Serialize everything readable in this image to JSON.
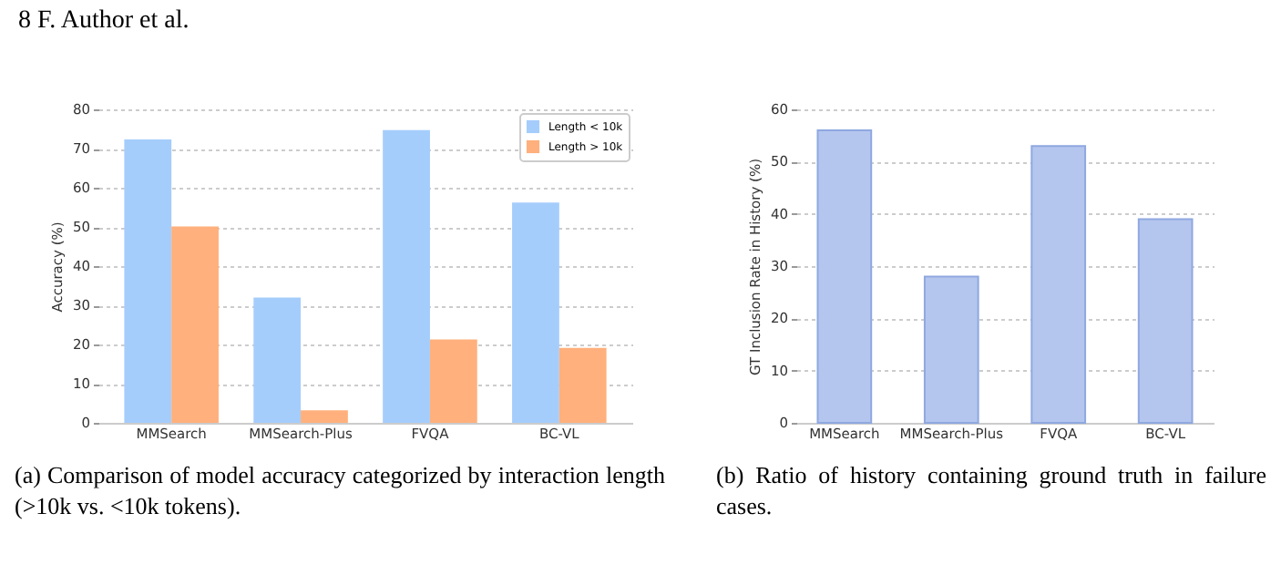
{
  "chart_data": [
    {
      "type": "bar",
      "ylabel": "Accuracy (%)",
      "categories": [
        "MMSearch",
        "MMSearch-Plus",
        "FVQA",
        "BC-VL"
      ],
      "series": [
        {
          "name": "Length < 10k",
          "color": "#a5cdfc",
          "values": [
            72.3,
            32,
            74.7,
            56.2
          ]
        },
        {
          "name": "Length > 10k",
          "color": "#ffb07c",
          "values": [
            50.1,
            3.2,
            21.3,
            19.1
          ]
        }
      ],
      "ylim": [
        0,
        80
      ],
      "yticks": [
        0,
        10,
        20,
        30,
        40,
        50,
        60,
        70,
        80
      ],
      "grid": "y",
      "legend": "top right",
      "annotations": [
        "8 F. Author et al.",
        "(a) Comparison of model accuracy categorized by interaction length (>10k vs. <10k tokens)."
      ]
    },
    {
      "type": "bar",
      "ylabel": "GT Inclusion Rate in History (%)",
      "categories": [
        "MMSearch",
        "MMSearch-Plus",
        "FVQA",
        "BC-VL"
      ],
      "values": [
        56,
        28,
        53,
        39
      ],
      "color": "#b4c6ee",
      "ylim": [
        0,
        60
      ],
      "yticks": [
        0,
        10,
        20,
        30,
        40,
        50,
        60
      ],
      "grid": "y",
      "annotations": [
        "(b) Ratio of history containing ground truth in failure cases."
      ]
    }
  ]
}
